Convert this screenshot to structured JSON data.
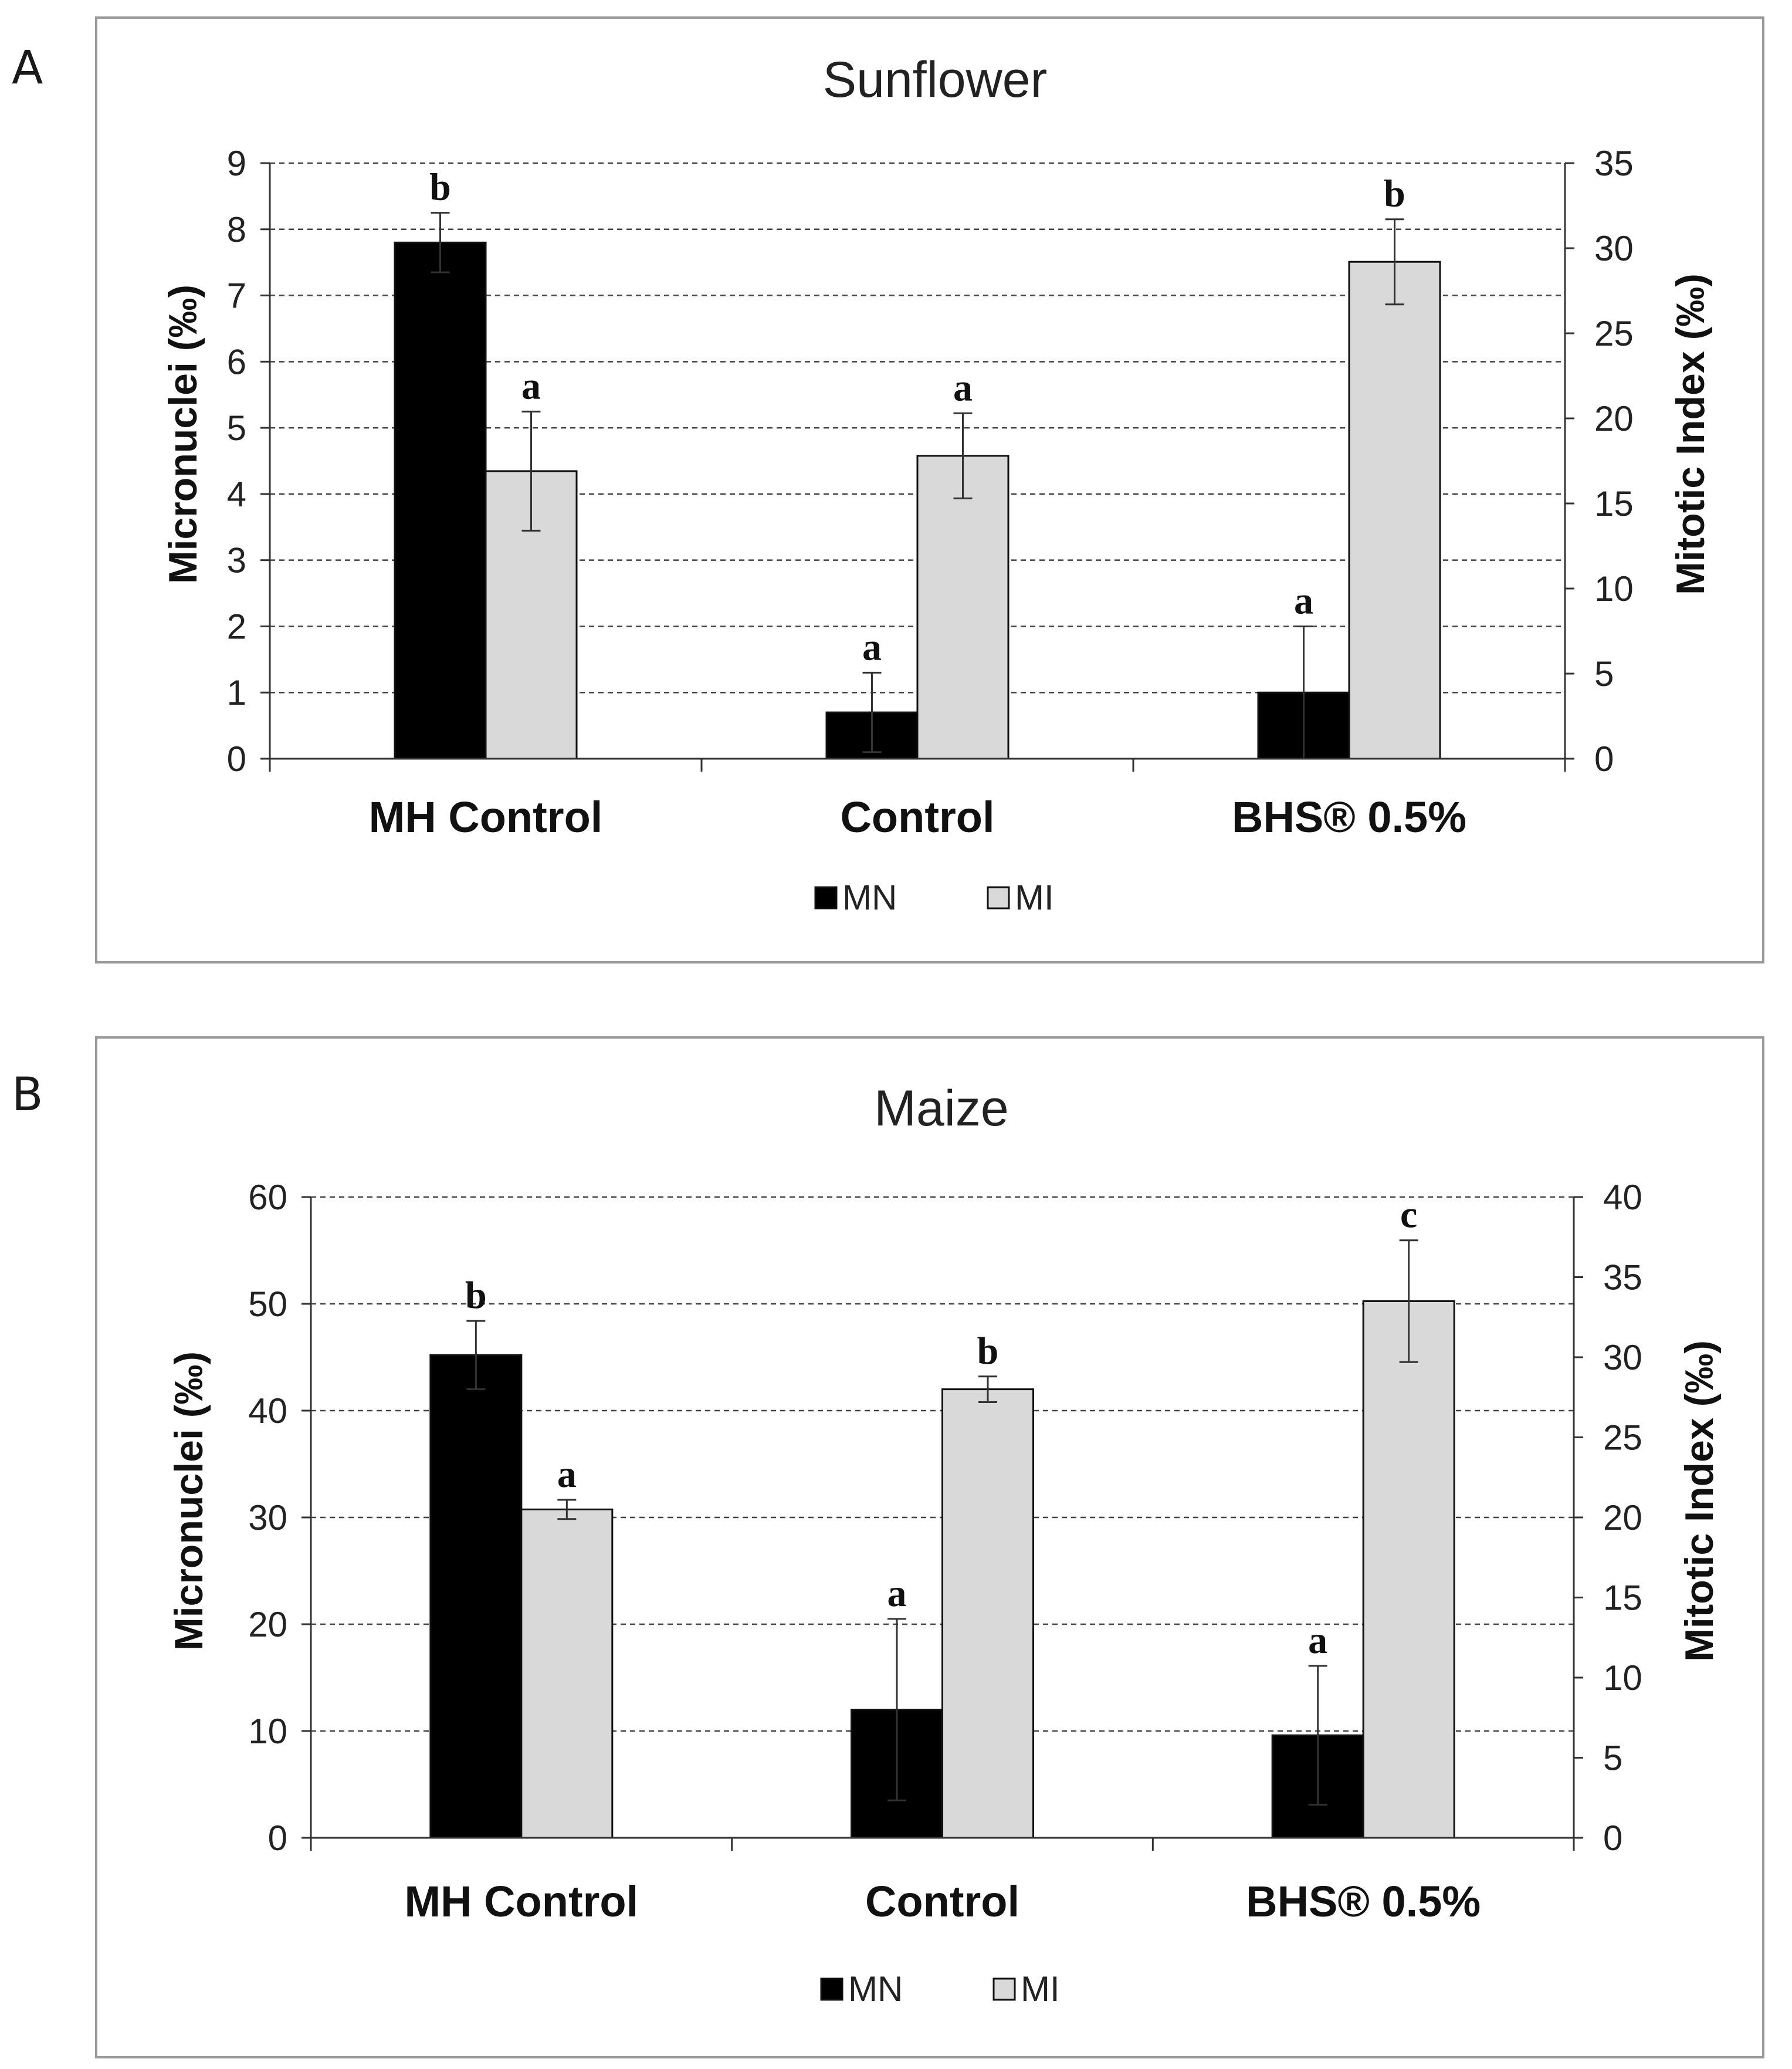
{
  "colors": {
    "MN": "#000000",
    "MI": "#d9d9d9",
    "bar_edge": "#111111"
  },
  "chart_data": [
    {
      "panel": "A",
      "type": "bar",
      "title": "Sunflower",
      "categories": [
        "MH Control",
        "Control",
        "BHS® 0.5%"
      ],
      "ylabel": "Micronuclei (‰)",
      "y2label": "Mitotic Index (‰)",
      "ylim": [
        0,
        9
      ],
      "y2lim": [
        0,
        35
      ],
      "yticks": [
        0,
        1,
        2,
        3,
        4,
        5,
        6,
        7,
        8,
        9
      ],
      "y2ticks": [
        0,
        5,
        10,
        15,
        20,
        25,
        30,
        35
      ],
      "grid": true,
      "legend": "bottom-center",
      "series": [
        {
          "name": "MN",
          "axis": "left",
          "values": [
            7.8,
            0.7,
            1.0
          ],
          "errors": [
            0.45,
            0.6,
            1.0
          ],
          "letters": [
            "b",
            "a",
            "a"
          ]
        },
        {
          "name": "MI",
          "axis": "right",
          "values": [
            16.9,
            17.8,
            29.2
          ],
          "errors": [
            3.5,
            2.5,
            2.5
          ],
          "letters": [
            "a",
            "a",
            "b"
          ]
        }
      ]
    },
    {
      "panel": "B",
      "type": "bar",
      "title": "Maize",
      "categories": [
        "MH Control",
        "Control",
        "BHS® 0.5%"
      ],
      "ylabel": "Micronuclei (‰)",
      "y2label": "Mitotic Index (‰)",
      "ylim": [
        0,
        60
      ],
      "y2lim": [
        0,
        40
      ],
      "yticks": [
        0,
        10,
        20,
        30,
        40,
        50,
        60
      ],
      "y2ticks": [
        0,
        5,
        10,
        15,
        20,
        25,
        30,
        35,
        40
      ],
      "grid": true,
      "legend": "bottom-center",
      "series": [
        {
          "name": "MN",
          "axis": "left",
          "values": [
            45.2,
            12.0,
            9.6
          ],
          "errors": [
            3.2,
            8.5,
            6.5
          ],
          "letters": [
            "b",
            "a",
            "a"
          ]
        },
        {
          "name": "MI",
          "axis": "right",
          "values": [
            20.5,
            28.0,
            33.5
          ],
          "errors": [
            0.6,
            0.8,
            3.8
          ],
          "letters": [
            "a",
            "b",
            "c"
          ]
        }
      ]
    }
  ]
}
